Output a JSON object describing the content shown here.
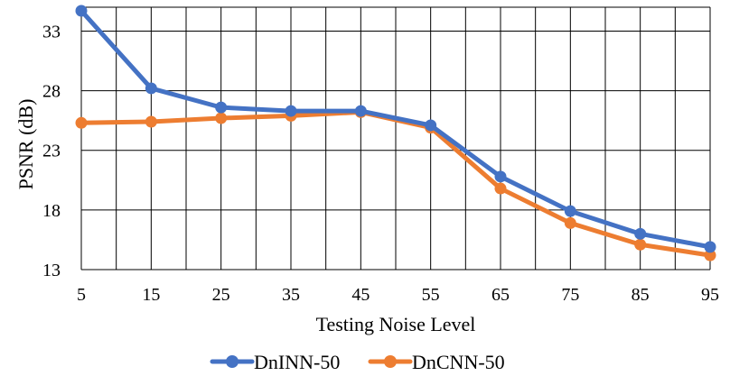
{
  "chart_data": {
    "type": "line",
    "xlabel": "Testing Noise Level",
    "ylabel": "PSNR (dB)",
    "x": [
      5,
      15,
      25,
      35,
      45,
      55,
      65,
      75,
      85,
      95
    ],
    "x_tick_labels": [
      "5",
      "15",
      "25",
      "35",
      "45",
      "55",
      "65",
      "75",
      "85",
      "95"
    ],
    "y_ticks": [
      13,
      18,
      23,
      28,
      33
    ],
    "y_tick_labels": [
      "13",
      "18",
      "23",
      "28",
      "33"
    ],
    "ylim": [
      13,
      35
    ],
    "grid": true,
    "legend_position": "bottom",
    "series": [
      {
        "name": "DnINN-50",
        "color": "#4472C4",
        "marker": "circle",
        "values": [
          34.7,
          28.2,
          26.6,
          26.3,
          26.3,
          25.1,
          20.8,
          17.9,
          16.0,
          14.9
        ]
      },
      {
        "name": "DnCNN-50",
        "color": "#ED7D31",
        "marker": "circle",
        "values": [
          25.3,
          25.4,
          25.7,
          25.9,
          26.2,
          24.9,
          19.8,
          16.9,
          15.1,
          14.2
        ]
      }
    ]
  }
}
